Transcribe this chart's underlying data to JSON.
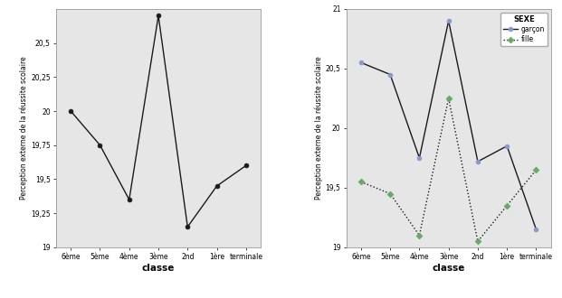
{
  "categories": [
    "6ème",
    "5ème",
    "4ème",
    "3ème",
    "2nd",
    "1ère",
    "terminale"
  ],
  "left_values": [
    20.0,
    19.75,
    19.35,
    20.7,
    19.15,
    19.45,
    19.6
  ],
  "left_ylim": [
    19.0,
    20.75
  ],
  "left_yticks": [
    19.0,
    19.25,
    19.5,
    19.75,
    20.0,
    20.25,
    20.5
  ],
  "left_ytick_labels": [
    "19",
    "19,25",
    "19,5",
    "19,75",
    "20",
    "20,25",
    "20,5"
  ],
  "left_ylabel": "Perception externe de la réussite scolaire",
  "left_xlabel": "classe",
  "right_garcon": [
    20.55,
    20.45,
    19.75,
    20.9,
    19.72,
    19.85,
    19.15
  ],
  "right_fille": [
    19.55,
    19.45,
    19.1,
    20.25,
    19.05,
    19.35,
    19.65
  ],
  "right_ylim": [
    19.0,
    21.0
  ],
  "right_yticks": [
    19.0,
    19.5,
    20.0,
    20.5,
    21.0
  ],
  "right_ytick_labels": [
    "19",
    "19,5",
    "20",
    "20,5",
    "21"
  ],
  "right_ylabel": "Perception externe de la réussite scolaire",
  "right_xlabel": "classe",
  "legend_title": "SEXE",
  "legend_garcon": "garçon",
  "legend_fille": "fille",
  "bg_color": "#e6e6e6",
  "fig_color": "#ffffff",
  "line_color": "#1a1a1a",
  "marker_color_left": "#1a1a1a",
  "marker_color_garcon": "#8899cc",
  "marker_color_fille": "#66aa66"
}
